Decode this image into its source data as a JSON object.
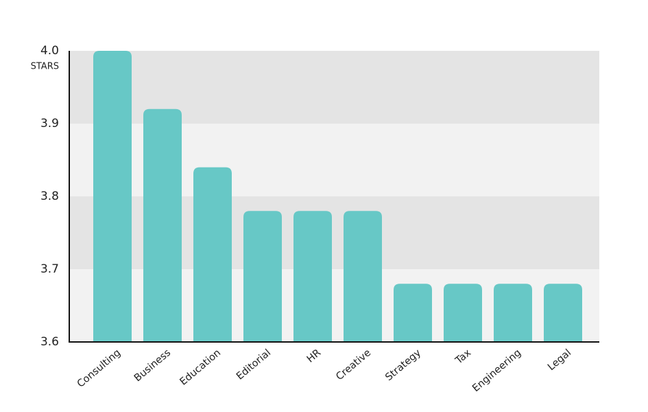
{
  "chart_data": {
    "type": "bar",
    "y_unit": "STARS",
    "categories": [
      "Consulting",
      "Business",
      "Education",
      "Editorial",
      "HR",
      "Creative",
      "Strategy",
      "Tax",
      "Engineering",
      "Legal"
    ],
    "values": [
      4.0,
      3.92,
      3.84,
      3.78,
      3.78,
      3.78,
      3.68,
      3.68,
      3.68,
      3.68
    ],
    "color": "#67c8c6",
    "ylim": [
      3.6,
      4.0
    ],
    "yticks": [
      3.6,
      3.7,
      3.8,
      3.9,
      {
        "value": 4.0,
        "label": "4.0"
      }
    ],
    "grid": true
  }
}
